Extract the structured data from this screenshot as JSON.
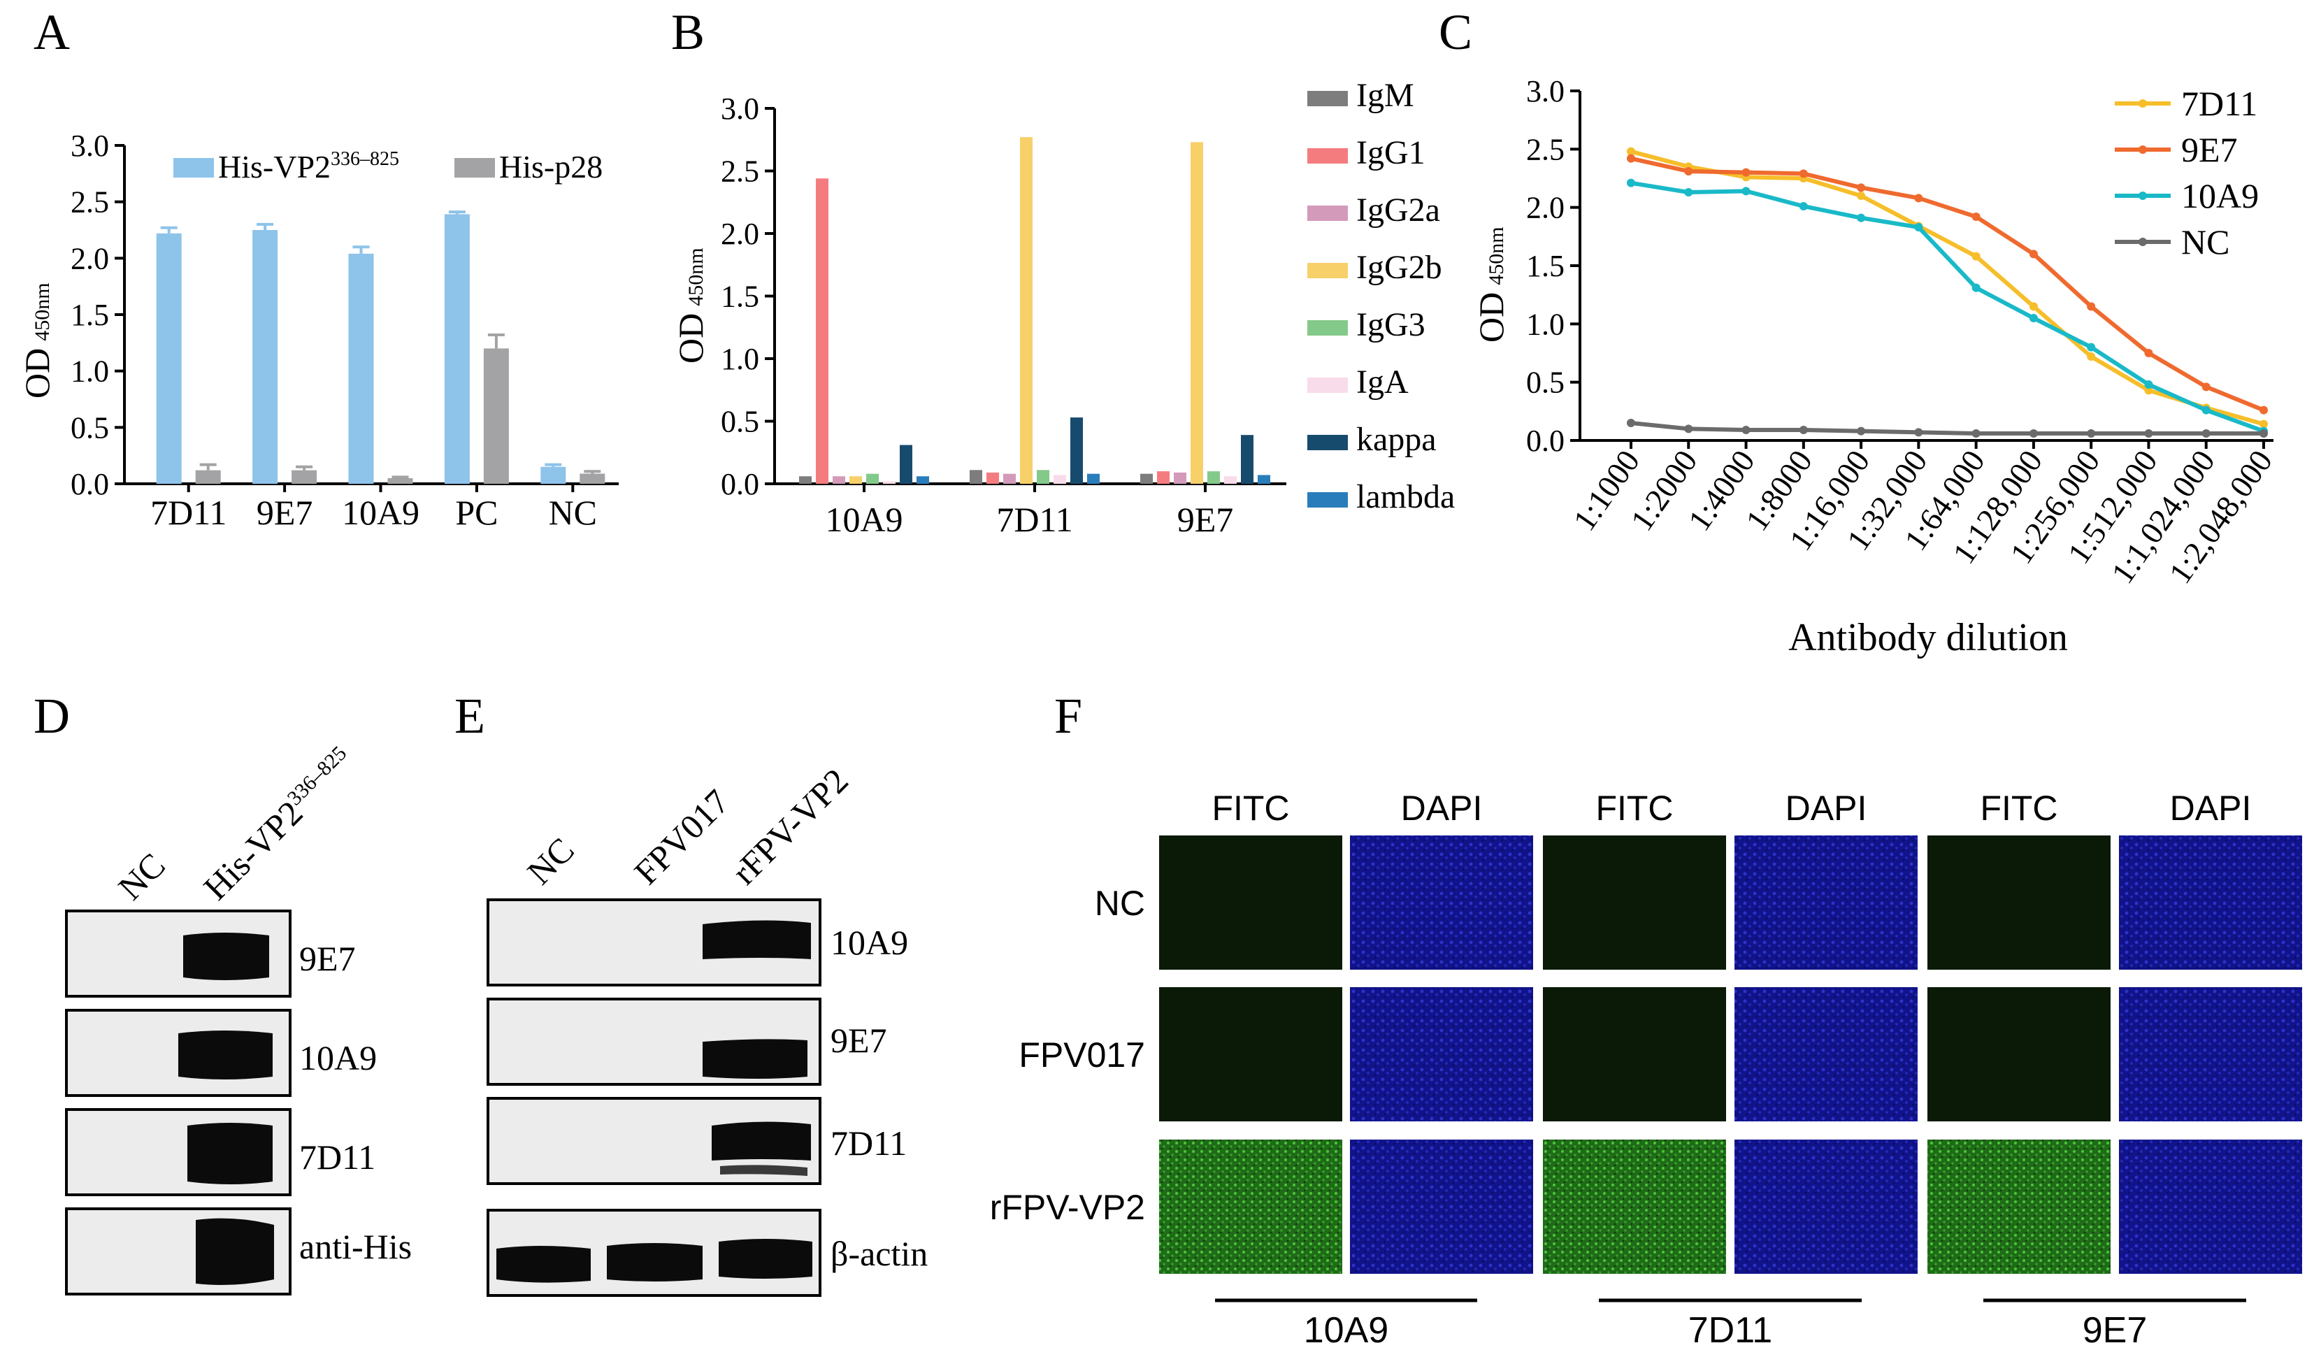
{
  "panel_letters": {
    "A": "A",
    "B": "B",
    "C": "C",
    "D": "D",
    "E": "E",
    "F": "F"
  },
  "chart_data": [
    {
      "id": "A",
      "type": "bar",
      "title": "",
      "ylabel_main": "OD",
      "ylabel_sub": "450nm",
      "xlabel": "",
      "ylim": [
        0,
        3.0
      ],
      "yticks": [
        "0.0",
        "0.5",
        "1.0",
        "1.5",
        "2.0",
        "2.5",
        "3.0"
      ],
      "categories": [
        "7D11",
        "9E7",
        "10A9",
        "PC",
        "NC"
      ],
      "series": [
        {
          "name": "His-VP2",
          "name_sup": "336–825",
          "color": "#8ec3ea",
          "values": [
            2.22,
            2.25,
            2.04,
            2.39,
            0.15
          ],
          "errors": [
            0.05,
            0.05,
            0.06,
            0.02,
            0.02
          ]
        },
        {
          "name": "His-p28",
          "name_sup": "",
          "color": "#a3a3a6",
          "values": [
            0.12,
            0.12,
            0.05,
            1.2,
            0.09
          ],
          "errors": [
            0.05,
            0.03,
            0.01,
            0.12,
            0.02
          ]
        }
      ]
    },
    {
      "id": "B",
      "type": "bar",
      "ylabel_main": "OD",
      "ylabel_sub": "450nm",
      "ylim": [
        0,
        3.0
      ],
      "yticks": [
        "0.0",
        "0.5",
        "1.0",
        "1.5",
        "2.0",
        "2.5",
        "3.0"
      ],
      "categories": [
        "10A9",
        "7D11",
        "9E7"
      ],
      "series": [
        {
          "name": "IgM",
          "color": "#7d7d7d",
          "values": [
            0.06,
            0.11,
            0.08
          ]
        },
        {
          "name": "IgG1",
          "color": "#f47c7f",
          "values": [
            2.44,
            0.09,
            0.1
          ]
        },
        {
          "name": "IgG2a",
          "color": "#d39ab9",
          "values": [
            0.06,
            0.08,
            0.09
          ]
        },
        {
          "name": "IgG2b",
          "color": "#f8d069",
          "values": [
            0.06,
            2.77,
            2.73
          ]
        },
        {
          "name": "IgG3",
          "color": "#83c98a",
          "values": [
            0.08,
            0.11,
            0.1
          ]
        },
        {
          "name": "IgA",
          "color": "#f8dce9",
          "values": [
            0.02,
            0.07,
            0.06
          ]
        },
        {
          "name": "kappa",
          "color": "#174b6d",
          "values": [
            0.31,
            0.53,
            0.39
          ]
        },
        {
          "name": "lambda",
          "color": "#2a7dbb",
          "values": [
            0.06,
            0.08,
            0.07
          ]
        }
      ]
    },
    {
      "id": "C",
      "type": "line",
      "ylabel_main": "OD",
      "ylabel_sub": "450nm",
      "xlabel": "Antibody dilution",
      "ylim": [
        0,
        3.0
      ],
      "yticks": [
        "0.0",
        "0.5",
        "1.0",
        "1.5",
        "2.0",
        "2.5",
        "3.0"
      ],
      "categories": [
        "1:1000",
        "1:2000",
        "1:4000",
        "1:8000",
        "1:16,000",
        "1:32,000",
        "1:64,000",
        "1:128,000",
        "1:256,000",
        "1:512,000",
        "1:1,024,000",
        "1:2,048,000"
      ],
      "series": [
        {
          "name": "7D11",
          "color": "#f6be2a",
          "values": [
            2.48,
            2.35,
            2.26,
            2.25,
            2.1,
            1.84,
            1.58,
            1.15,
            0.72,
            0.43,
            0.28,
            0.14
          ]
        },
        {
          "name": "9E7",
          "color": "#ef6a2f",
          "values": [
            2.42,
            2.31,
            2.3,
            2.29,
            2.17,
            2.08,
            1.92,
            1.6,
            1.15,
            0.75,
            0.46,
            0.26
          ]
        },
        {
          "name": "10A9",
          "color": "#19b9c8",
          "values": [
            2.21,
            2.13,
            2.14,
            2.01,
            1.91,
            1.83,
            1.31,
            1.05,
            0.8,
            0.48,
            0.26,
            0.08
          ]
        },
        {
          "name": "NC",
          "color": "#6b6b6b",
          "values": [
            0.15,
            0.1,
            0.09,
            0.09,
            0.08,
            0.07,
            0.06,
            0.06,
            0.06,
            0.06,
            0.06,
            0.06
          ]
        }
      ]
    }
  ],
  "panel_d": {
    "lanes": [
      "NC",
      "His-VP2"
    ],
    "lane_sup": "336–825",
    "rows": [
      "9E7",
      "10A9",
      "7D11",
      "anti-His"
    ]
  },
  "panel_e": {
    "lanes": [
      "NC",
      "FPV017",
      "rFPV-VP2"
    ],
    "rows": [
      "10A9",
      "9E7",
      "7D11",
      "β-actin"
    ]
  },
  "panel_f": {
    "column_headers": [
      "FITC",
      "DAPI",
      "FITC",
      "DAPI",
      "FITC",
      "DAPI"
    ],
    "row_labels": [
      "NC",
      "FPV017",
      "rFPV-VP2"
    ],
    "group_labels": [
      "10A9",
      "7D11",
      "9E7"
    ],
    "colors": {
      "fitc_dark": "#0b1a06",
      "fitc_bright": "#2f8f24",
      "dapi": "#15189a"
    }
  }
}
